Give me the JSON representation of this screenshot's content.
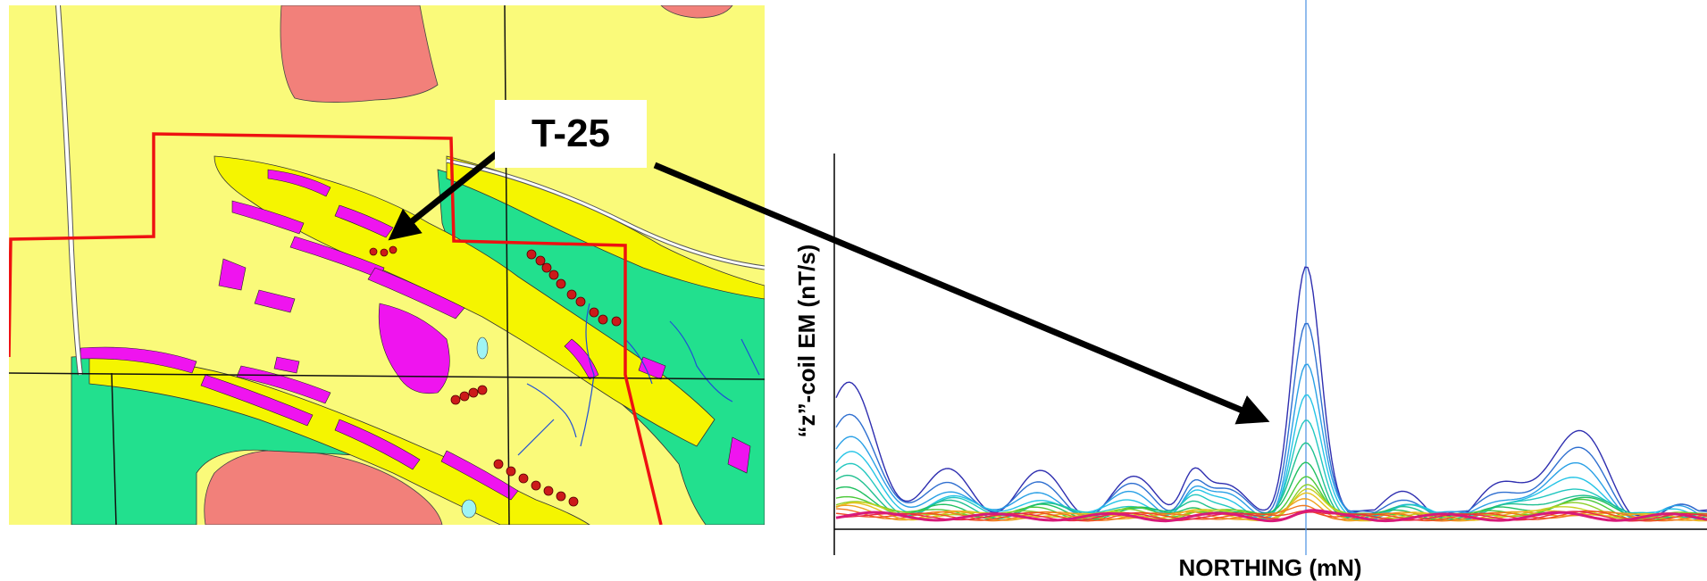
{
  "callout": {
    "label": "T-25"
  },
  "chart": {
    "xlabel": "NORTHING (mN)",
    "ylabel": "“z”-coil EM (nT/s)",
    "channel_colors": [
      "#2f2fb0",
      "#2f6fd0",
      "#2aa0e6",
      "#25c4e6",
      "#22c7c0",
      "#20c090",
      "#20c060",
      "#4cc93a",
      "#8cd02a",
      "#c8d020",
      "#e6c21f",
      "#efa01e",
      "#f0781e",
      "#ef4c22",
      "#e8244a",
      "#d81a7a"
    ]
  },
  "map": {
    "colors": {
      "background": "#fafa7a",
      "bright_yellow": "#f5f500",
      "green": "#22e08e",
      "salmon": "#f2807a",
      "magenta": "#ef14ef",
      "red_line": "#ee1111",
      "drill_points": "#cc1a1a",
      "streams": "#1f4fd6",
      "cyan": "#9ff4f4"
    }
  }
}
